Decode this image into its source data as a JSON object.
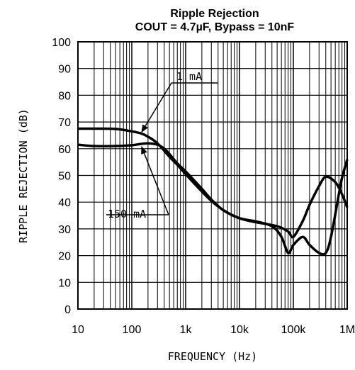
{
  "chart_data": {
    "type": "line",
    "title": "Ripple Rejection",
    "subtitle": "COUT = 4.7µF, Bypass = 10nF",
    "xlabel": "FREQUENCY (Hz)",
    "ylabel": "RIPPLE REJECTION (dB)",
    "xscale": "log",
    "xlim": [
      10,
      1000000
    ],
    "ylim": [
      0,
      100
    ],
    "grid": true,
    "x_ticks": [
      10,
      100,
      1000,
      10000,
      100000,
      1000000
    ],
    "x_tick_labels": [
      "10",
      "100",
      "1k",
      "10k",
      "100k",
      "1M"
    ],
    "y_ticks": [
      0,
      10,
      20,
      30,
      40,
      50,
      60,
      70,
      80,
      90,
      100
    ],
    "y_tick_labels": [
      "0",
      "10",
      "20",
      "30",
      "40",
      "50",
      "60",
      "70",
      "80",
      "90",
      "100"
    ],
    "annotations": [
      {
        "text": "1 mA",
        "target": [
          150,
          66
        ]
      },
      {
        "text": "150 mA",
        "target": [
          150,
          61
        ]
      }
    ],
    "series": [
      {
        "x": [
          10,
          20,
          50,
          100,
          150,
          200,
          300,
          500,
          700,
          1000,
          2000,
          3000,
          5000,
          10000,
          20000,
          50000,
          80000,
          100000,
          150000,
          200000,
          300000,
          400000,
          600000,
          800000,
          1000000
        ],
        "y": [
          67.5,
          67.5,
          67.4,
          66.5,
          65.7,
          64.5,
          62,
          57,
          54,
          50.5,
          44,
          40.5,
          37,
          34,
          32.5,
          31,
          29,
          27,
          33,
          39,
          46,
          49.5,
          47.5,
          43,
          38
        ]
      },
      {
        "x": [
          10,
          20,
          50,
          100,
          150,
          200,
          300,
          400,
          500,
          700,
          1000,
          2000,
          3000,
          5000,
          10000,
          20000,
          40000,
          60000,
          80000,
          100000,
          150000,
          200000,
          300000,
          400000,
          500000,
          700000,
          800000,
          1000000
        ],
        "y": [
          61.5,
          61,
          61,
          61.3,
          61.8,
          62,
          61.5,
          60,
          58,
          54.5,
          51.5,
          45,
          41,
          37,
          34,
          32.8,
          31,
          27,
          21,
          24,
          27,
          24,
          21,
          21,
          27,
          43,
          49,
          56
        ]
      }
    ]
  }
}
